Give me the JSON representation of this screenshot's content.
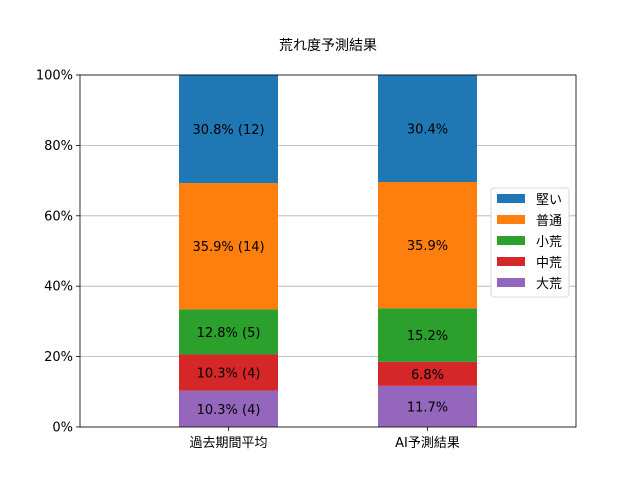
{
  "chart_data": {
    "type": "bar",
    "stacked": true,
    "title": "荒れ度予測結果",
    "xlabel": "",
    "ylabel": "",
    "ylim": [
      0,
      100
    ],
    "yticks": [
      "0%",
      "20%",
      "40%",
      "60%",
      "80%",
      "100%"
    ],
    "ytick_values": [
      0,
      20,
      40,
      60,
      80,
      100
    ],
    "grid": "y",
    "legend_placement": "right",
    "categories": [
      "過去期間平均",
      "AI予測結果"
    ],
    "series": [
      {
        "name": "大荒",
        "color": "#9467bd",
        "values": [
          10.3,
          11.7
        ],
        "labels": [
          "10.3% (4)",
          "11.7%"
        ]
      },
      {
        "name": "中荒",
        "color": "#d62728",
        "values": [
          10.3,
          6.8
        ],
        "labels": [
          "10.3% (4)",
          "6.8%"
        ]
      },
      {
        "name": "小荒",
        "color": "#2ca02c",
        "values": [
          12.8,
          15.2
        ],
        "labels": [
          "12.8% (5)",
          "15.2%"
        ]
      },
      {
        "name": "普通",
        "color": "#ff7f0e",
        "values": [
          35.9,
          35.9
        ],
        "labels": [
          "35.9% (14)",
          "35.9%"
        ]
      },
      {
        "name": "堅い",
        "color": "#1f77b4",
        "values": [
          30.8,
          30.4
        ],
        "labels": [
          "30.8% (12)",
          "30.4%"
        ]
      }
    ],
    "legend_order": [
      "堅い",
      "普通",
      "小荒",
      "中荒",
      "大荒"
    ]
  }
}
